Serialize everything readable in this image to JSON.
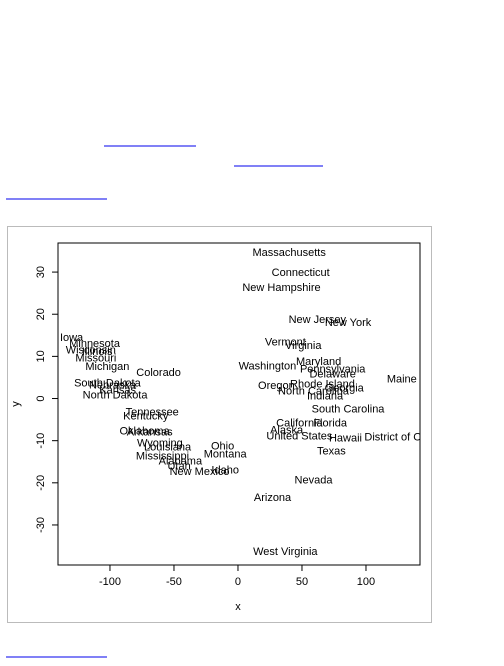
{
  "chart_data": {
    "type": "scatter",
    "xlabel": "x",
    "ylabel": "y",
    "labels": [
      "Massachusetts",
      "Connecticut",
      "New Hampshire",
      "New Jersey",
      "New York",
      "Vermont",
      "Virginia",
      "Iowa",
      "Minnesota",
      "Wisconsin",
      "Illinois",
      "Missouri",
      "Michigan",
      "Colorado",
      "Washington",
      "Maryland",
      "Pennsylvania",
      "Delaware",
      "Maine",
      "South Dakota",
      "Nebraska",
      "Kansas",
      "North Dakota",
      "Oregon",
      "Rhode Island",
      "North Carolina",
      "Georgia",
      "Indiana",
      "South Carolina",
      "Tennessee",
      "Kentucky",
      "California",
      "Florida",
      "Oklahoma",
      "Arkansas",
      "Alaska",
      "United States",
      "Hawaii",
      "District of Columbia",
      "Texas",
      "Ohio",
      "Montana",
      "Wyoming",
      "Louisiana",
      "Mississippi",
      "Alabama",
      "Utah",
      "New Mexico",
      "Idaho",
      "Nevada",
      "Arizona",
      "West Virginia"
    ],
    "x": [
      40,
      49,
      34,
      62,
      86,
      37,
      51,
      -130,
      -112,
      -115,
      -110,
      -111,
      -102,
      -62,
      23,
      63,
      74,
      74,
      128,
      -102,
      -98,
      -94,
      -96,
      30,
      66,
      59,
      83,
      68,
      86,
      -67,
      -72,
      48,
      72,
      -73,
      -69,
      38,
      48,
      84,
      136,
      73,
      -12,
      -10,
      -61,
      -55,
      -59,
      -45,
      -46,
      -30,
      -10,
      59,
      27,
      37
    ],
    "y": [
      34.5,
      29.8,
      26.2,
      18.6,
      17.9,
      13.3,
      12.4,
      14.3,
      12.9,
      11.4,
      11,
      9.5,
      7.4,
      6,
      7.6,
      8.6,
      6.9,
      5.7,
      4.5,
      3.6,
      3.1,
      1.9,
      0.7,
      2.9,
      3.3,
      1.7,
      2.4,
      0.5,
      -2.6,
      -3.3,
      -4.3,
      -6,
      -6,
      -7.9,
      -8.1,
      -7.6,
      -9,
      -9.5,
      -9.3,
      -12.6,
      -11.4,
      -13.3,
      -10.7,
      -11.7,
      -13.8,
      -15,
      -16.2,
      -17.4,
      -17.1,
      -19.5,
      -23.6,
      -36.4
    ],
    "xlim": [
      -140.6,
      142.2
    ],
    "ylim": [
      -39.5,
      36.9
    ],
    "xticks": [
      -100,
      -50,
      0,
      50,
      100
    ],
    "yticks": [
      -30,
      -20,
      -10,
      0,
      10,
      20,
      30
    ],
    "color": "#000000"
  }
}
